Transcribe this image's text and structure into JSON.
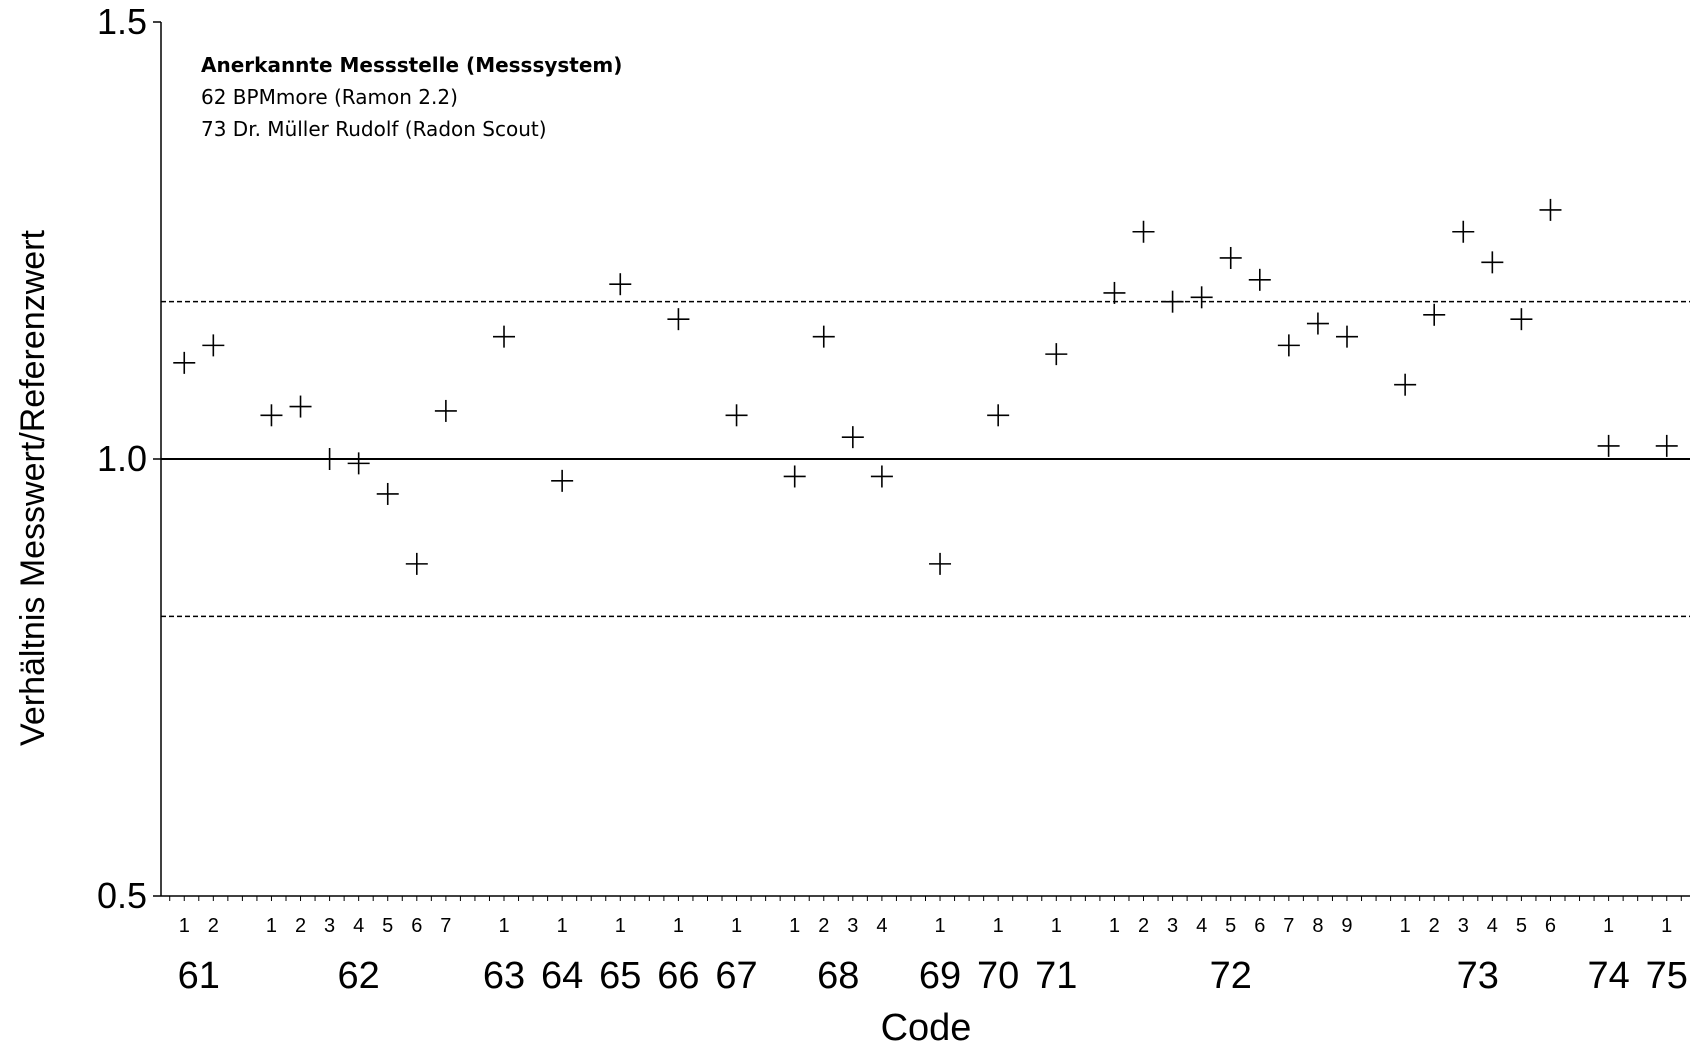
{
  "chart_data": {
    "type": "scatter",
    "title": "",
    "xlabel": "Code",
    "ylabel": "Verhältnis Messwert/Referenzwert",
    "ylim": [
      0.5,
      1.5
    ],
    "yticks": [
      "0.5",
      "1.0",
      "1.5"
    ],
    "grid": false,
    "marker": "plus",
    "reference_lines": [
      {
        "y": 1.0,
        "style": "solid"
      },
      {
        "y": 1.18,
        "style": "dashed"
      },
      {
        "y": 0.82,
        "style": "dashed"
      }
    ],
    "annotation": {
      "title": "Anerkannte Messstelle (Messsystem)",
      "lines": [
        "62 BPMmore (Ramon 2.2)",
        "73 Dr. Müller Rudolf (Radon Scout)"
      ]
    },
    "groups": [
      {
        "code": "61",
        "points": [
          {
            "sub": "1",
            "y": 1.11
          },
          {
            "sub": "2",
            "y": 1.13
          }
        ]
      },
      {
        "code": "62",
        "points": [
          {
            "sub": "1",
            "y": 1.05
          },
          {
            "sub": "2",
            "y": 1.06
          },
          {
            "sub": "3",
            "y": 1.0
          },
          {
            "sub": "4",
            "y": 0.995
          },
          {
            "sub": "5",
            "y": 0.96
          },
          {
            "sub": "6",
            "y": 0.88
          },
          {
            "sub": "7",
            "y": 1.055
          }
        ]
      },
      {
        "code": "63",
        "points": [
          {
            "sub": "1",
            "y": 1.14
          }
        ]
      },
      {
        "code": "64",
        "points": [
          {
            "sub": "1",
            "y": 0.975
          }
        ]
      },
      {
        "code": "65",
        "points": [
          {
            "sub": "1",
            "y": 1.2
          }
        ]
      },
      {
        "code": "66",
        "points": [
          {
            "sub": "1",
            "y": 1.16
          }
        ]
      },
      {
        "code": "67",
        "points": [
          {
            "sub": "1",
            "y": 1.05
          }
        ]
      },
      {
        "code": "68",
        "points": [
          {
            "sub": "1",
            "y": 0.98
          },
          {
            "sub": "2",
            "y": 1.14
          },
          {
            "sub": "3",
            "y": 1.025
          },
          {
            "sub": "4",
            "y": 0.98
          }
        ]
      },
      {
        "code": "69",
        "points": [
          {
            "sub": "1",
            "y": 0.88
          }
        ]
      },
      {
        "code": "70",
        "points": [
          {
            "sub": "1",
            "y": 1.05
          }
        ]
      },
      {
        "code": "71",
        "points": [
          {
            "sub": "1",
            "y": 1.12
          }
        ]
      },
      {
        "code": "72",
        "points": [
          {
            "sub": "1",
            "y": 1.19
          },
          {
            "sub": "2",
            "y": 1.26
          },
          {
            "sub": "3",
            "y": 1.18
          },
          {
            "sub": "4",
            "y": 1.185
          },
          {
            "sub": "5",
            "y": 1.23
          },
          {
            "sub": "6",
            "y": 1.205
          },
          {
            "sub": "7",
            "y": 1.13
          },
          {
            "sub": "8",
            "y": 1.155
          },
          {
            "sub": "9",
            "y": 1.14
          }
        ]
      },
      {
        "code": "73",
        "points": [
          {
            "sub": "1",
            "y": 1.085
          },
          {
            "sub": "2",
            "y": 1.165
          },
          {
            "sub": "3",
            "y": 1.26
          },
          {
            "sub": "4",
            "y": 1.225
          },
          {
            "sub": "5",
            "y": 1.16
          },
          {
            "sub": "6",
            "y": 1.285
          }
        ]
      },
      {
        "code": "74",
        "points": [
          {
            "sub": "1",
            "y": 1.015
          }
        ]
      },
      {
        "code": "75",
        "points": [
          {
            "sub": "1",
            "y": 1.015
          }
        ]
      }
    ]
  },
  "colors": {
    "marker": "#000000",
    "axis": "#000000",
    "background": "#ffffff"
  }
}
